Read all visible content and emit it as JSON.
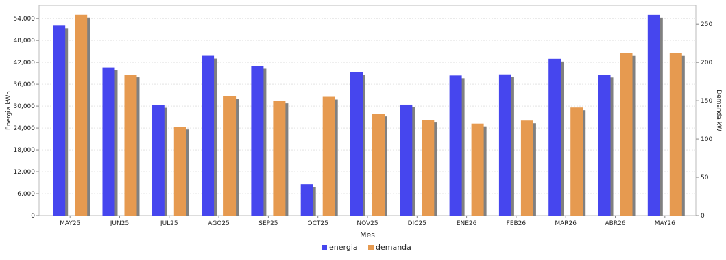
{
  "chart_data": {
    "type": "bar",
    "title": "",
    "xlabel": "Mes",
    "ylabel": "Energia kWh",
    "y2label": "Demanda kW",
    "categories": [
      "MAY25",
      "JUN25",
      "JUL25",
      "AGO25",
      "SEP25",
      "OCT25",
      "NOV25",
      "DIC25",
      "ENE26",
      "FEB26",
      "MAR26",
      "ABR26",
      "MAY26"
    ],
    "series": [
      {
        "name": "energia",
        "axis": "left",
        "color": "#4646ee",
        "values": [
          52100,
          40600,
          30300,
          43800,
          41000,
          8600,
          39400,
          30400,
          38400,
          38700,
          43000,
          38600,
          55000
        ]
      },
      {
        "name": "demanda",
        "axis": "right",
        "color": "#e69a50",
        "values": [
          262,
          184,
          116,
          156,
          150,
          155,
          133,
          125,
          120,
          124,
          141,
          212,
          212
        ]
      }
    ],
    "ylim": [
      0,
      57600
    ],
    "y2lim": [
      0,
      274.3
    ],
    "yticks": [
      0,
      6000,
      12000,
      18000,
      24000,
      30000,
      36000,
      42000,
      48000,
      54000
    ],
    "ytick_labels": [
      "0",
      "6,000",
      "12,000",
      "18,000",
      "24,000",
      "30,000",
      "36,000",
      "42,000",
      "48,000",
      "54,000"
    ],
    "y2ticks": [
      0,
      50,
      100,
      150,
      200,
      250
    ],
    "y2tick_labels": [
      "0",
      "50",
      "100",
      "150",
      "200",
      "250"
    ],
    "grid": true,
    "legend_position": "bottom-center"
  }
}
